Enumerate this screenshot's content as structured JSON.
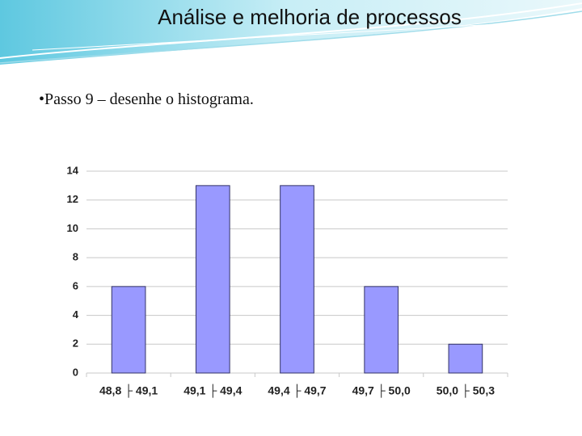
{
  "slide": {
    "title": "Análise e melhoria de processos",
    "bullet": "Passo 9 – desenhe o histograma."
  },
  "chart_data": {
    "type": "bar",
    "categories": [
      "48,8 ├ 49,1",
      "49,1 ├ 49,4",
      "49,4 ├ 49,7",
      "49,7 ├ 50,0",
      "50,0 ├ 50,3"
    ],
    "values": [
      6,
      13,
      13,
      6,
      2
    ],
    "color": "#9999ff",
    "ylim": [
      0,
      14
    ],
    "yticks": [
      0,
      2,
      4,
      6,
      8,
      10,
      12,
      14
    ],
    "grid": true
  }
}
